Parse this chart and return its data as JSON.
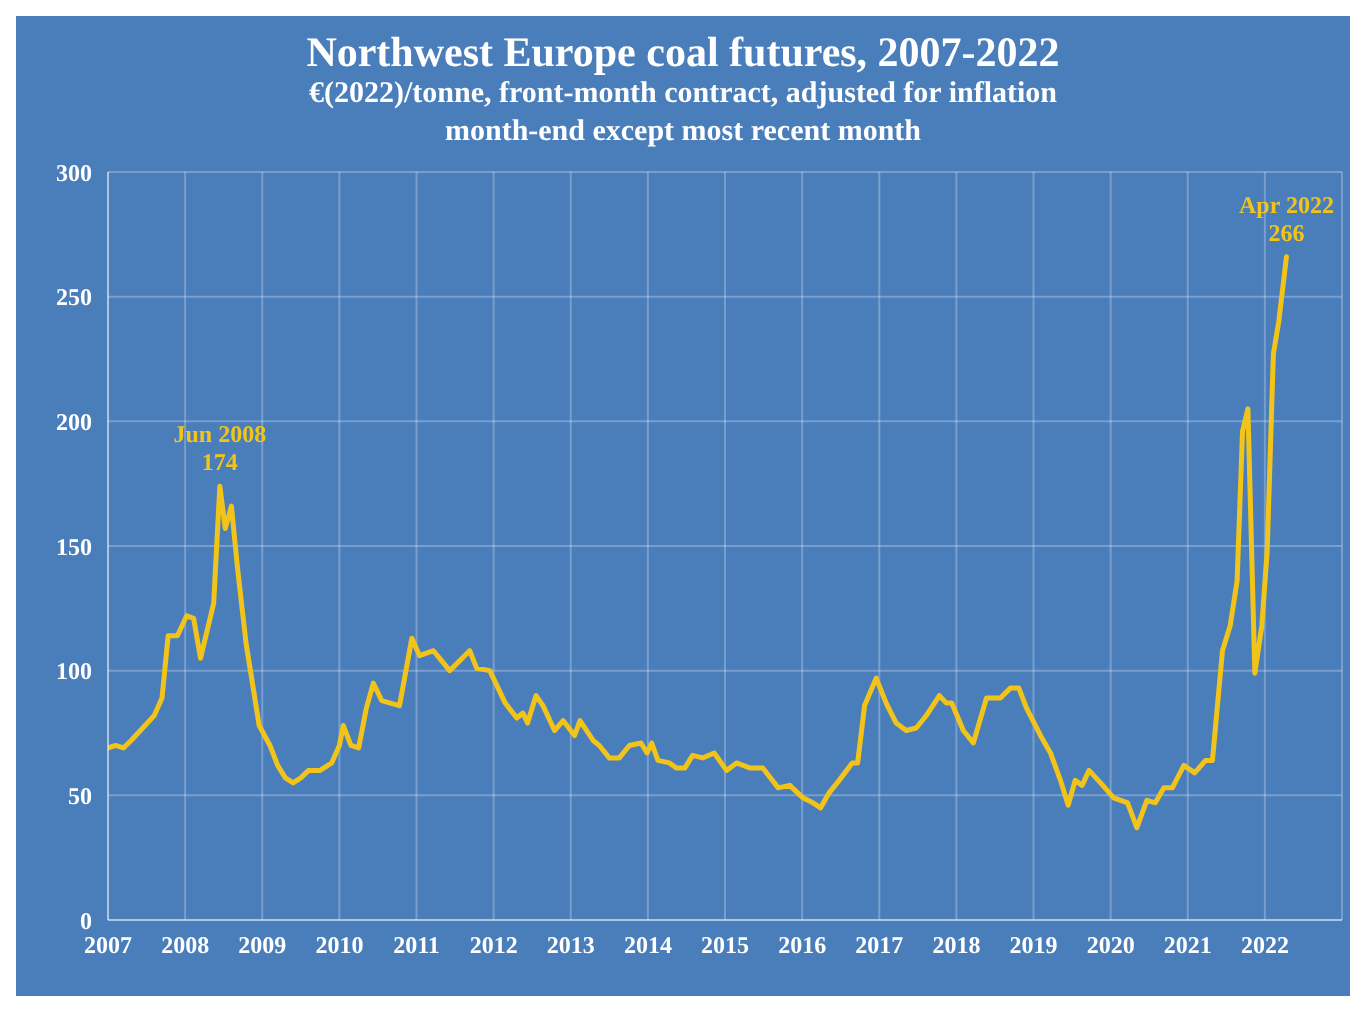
{
  "chart_data": {
    "type": "line",
    "title": "Northwest Europe coal futures, 2007-2022",
    "subtitle": "€(2022)/tonne, front-month contract, adjusted for inflation\nmonth-end except most recent month",
    "x": [
      2007.0,
      2007.1,
      2007.2,
      2007.3,
      2007.45,
      2007.6,
      2007.7,
      2007.78,
      2007.9,
      2008.02,
      2008.11,
      2008.2,
      2008.37,
      2008.45,
      2008.52,
      2008.6,
      2008.68,
      2008.79,
      2008.96,
      2009.1,
      2009.2,
      2009.3,
      2009.4,
      2009.5,
      2009.6,
      2009.75,
      2009.9,
      2010.0,
      2010.05,
      2010.15,
      2010.25,
      2010.35,
      2010.44,
      2010.55,
      2010.66,
      2010.78,
      2010.94,
      2011.04,
      2011.22,
      2011.43,
      2011.69,
      2011.78,
      2011.95,
      2012.15,
      2012.3,
      2012.38,
      2012.44,
      2012.55,
      2012.64,
      2012.79,
      2012.9,
      2013.05,
      2013.12,
      2013.29,
      2013.37,
      2013.5,
      2013.63,
      2013.76,
      2013.91,
      2013.99,
      2014.05,
      2014.13,
      2014.28,
      2014.37,
      2014.48,
      2014.58,
      2014.71,
      2014.86,
      2015.02,
      2015.15,
      2015.32,
      2015.49,
      2015.69,
      2015.84,
      2016.01,
      2016.14,
      2016.24,
      2016.35,
      2016.48,
      2016.65,
      2016.72,
      2016.81,
      2016.96,
      2017.09,
      2017.22,
      2017.35,
      2017.48,
      2017.61,
      2017.78,
      2017.87,
      2017.94,
      2018.09,
      2018.22,
      2018.39,
      2018.57,
      2018.7,
      2018.81,
      2018.91,
      2019.09,
      2019.22,
      2019.35,
      2019.45,
      2019.54,
      2019.63,
      2019.72,
      2019.87,
      2020.04,
      2020.22,
      2020.34,
      2020.47,
      2020.58,
      2020.69,
      2020.8,
      2020.95,
      2021.09,
      2021.23,
      2021.32,
      2021.45,
      2021.55,
      2021.64,
      2021.71,
      2021.78,
      2021.87,
      2021.96,
      2022.03,
      2022.11,
      2022.18,
      2022.28
    ],
    "series": [
      {
        "color": "#f2c41a",
        "values": [
          69,
          70,
          69,
          72,
          77,
          82,
          89,
          114,
          114,
          122,
          121,
          105,
          127,
          174,
          157,
          166,
          141,
          111,
          78,
          70,
          62,
          57,
          55,
          57,
          60,
          60,
          63,
          70,
          78,
          70,
          69,
          85,
          95,
          88,
          87,
          86,
          113,
          106,
          108,
          100,
          108,
          101,
          100,
          87,
          81,
          83,
          79,
          90,
          86,
          76,
          80,
          74,
          80,
          72,
          70,
          65,
          65,
          70,
          71,
          67,
          71,
          64,
          63,
          61,
          61,
          66,
          65,
          67,
          60,
          63,
          61,
          61,
          53,
          54,
          49,
          47,
          45,
          51,
          56,
          63,
          63,
          86,
          97,
          87,
          79,
          76,
          77,
          82,
          90,
          87,
          87,
          76,
          71,
          89,
          89,
          93,
          93,
          85,
          74,
          67,
          56,
          46,
          56,
          54,
          60,
          55,
          49,
          47,
          37,
          48,
          47,
          53,
          53,
          62,
          59,
          64,
          64,
          108,
          118,
          136,
          196,
          205,
          99,
          118,
          148,
          227,
          240,
          266
        ]
      }
    ],
    "xlim": [
      2007,
      2023
    ],
    "xticks": [
      2007,
      2008,
      2009,
      2010,
      2011,
      2012,
      2013,
      2014,
      2015,
      2016,
      2017,
      2018,
      2019,
      2020,
      2021,
      2022
    ],
    "ylim": [
      0,
      300
    ],
    "yticks": [
      0,
      50,
      100,
      150,
      200,
      250,
      300
    ],
    "grid": true,
    "legend": false,
    "marker": "none",
    "line_style": "solid",
    "annotations": [
      {
        "text": "Jun 2008\n174",
        "x": 2008.45,
        "y": 174
      },
      {
        "text": "Apr 2022\n266",
        "x": 2022.28,
        "y": 266
      }
    ]
  }
}
